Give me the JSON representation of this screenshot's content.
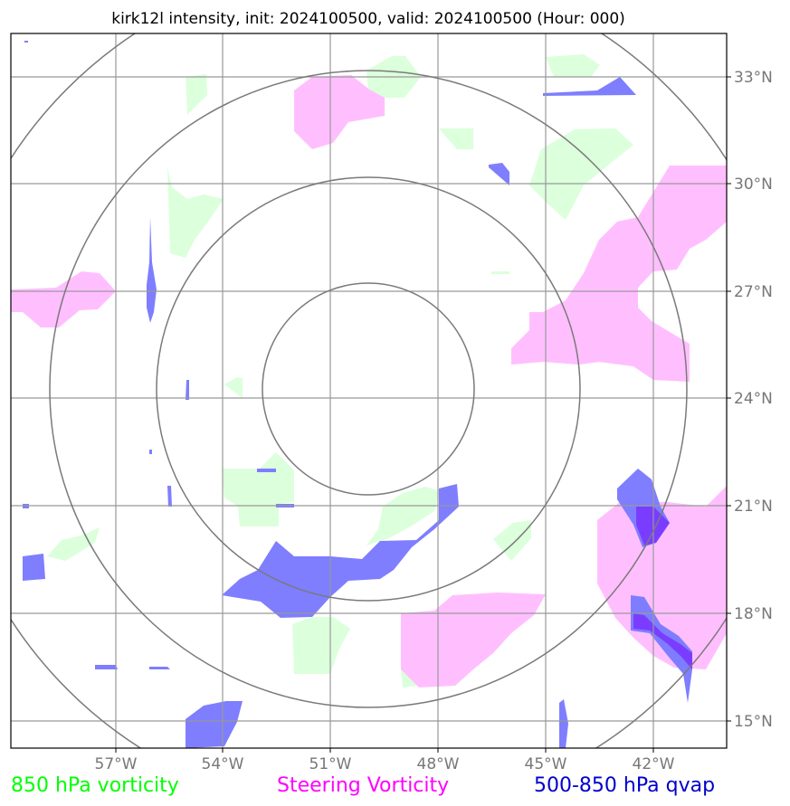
{
  "title": "kirk12l intensity, init: 2024100500, valid: 2024100500 (Hour: 000)",
  "axes": {
    "lon_ticks": [
      "57°W",
      "54°W",
      "51°W",
      "48°W",
      "45°W",
      "42°W"
    ],
    "lat_ticks": [
      "33°N",
      "30°N",
      "27°N",
      "24°N",
      "21°N",
      "18°N",
      "15°N"
    ]
  },
  "legend": [
    {
      "label": "850 hPa vorticity",
      "color": "#00ff00"
    },
    {
      "label": "Steering Vorticity",
      "color": "#ff00ff"
    },
    {
      "label": "500-850 hPa qvap",
      "color": "#0000cc"
    }
  ],
  "layers": {
    "vorticity_850_color": "#dcffdc",
    "steering_vorticity_color": "#ffbfff",
    "qvap_color": "#7b7bff",
    "qvap_strong_color": "#7a3dff"
  }
}
